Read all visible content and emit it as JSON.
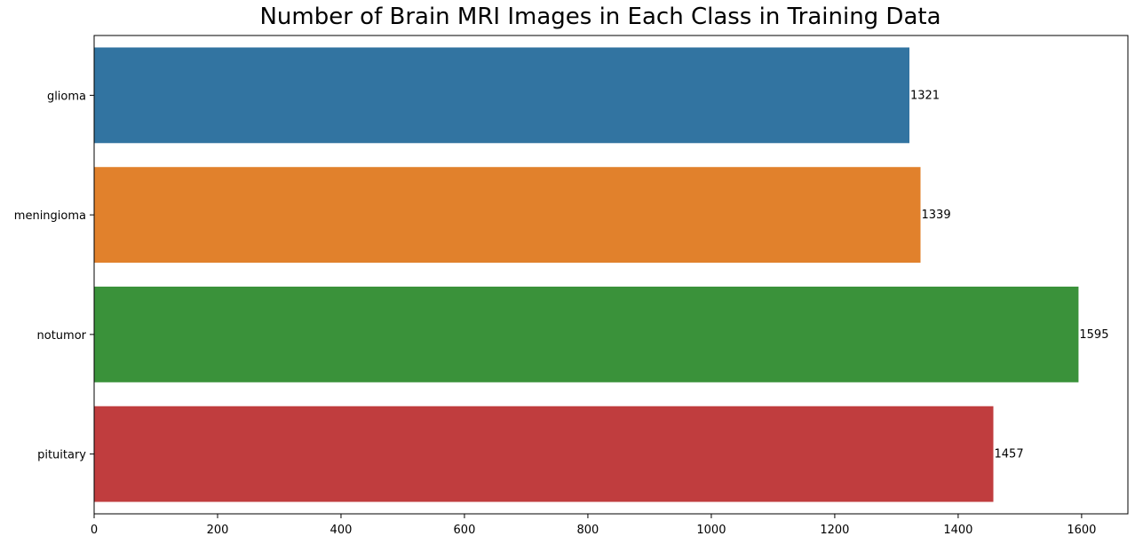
{
  "chart_data": {
    "type": "bar",
    "orientation": "horizontal",
    "title": "Number of Brain MRI Images in Each Class in Training Data",
    "xlabel": "",
    "ylabel": "",
    "categories": [
      "glioma",
      "meningioma",
      "notumor",
      "pituitary"
    ],
    "values": [
      1321,
      1339,
      1595,
      1457
    ],
    "data_labels": [
      "1321",
      "1339",
      "1595",
      "1457"
    ],
    "colors": [
      "#3274a1",
      "#e1812c",
      "#3a923a",
      "#c03d3e"
    ],
    "xlim": [
      0,
      1675
    ],
    "xticks": [
      0,
      200,
      400,
      600,
      800,
      1000,
      1200,
      1400,
      1600
    ],
    "grid": false,
    "legend": "none"
  }
}
